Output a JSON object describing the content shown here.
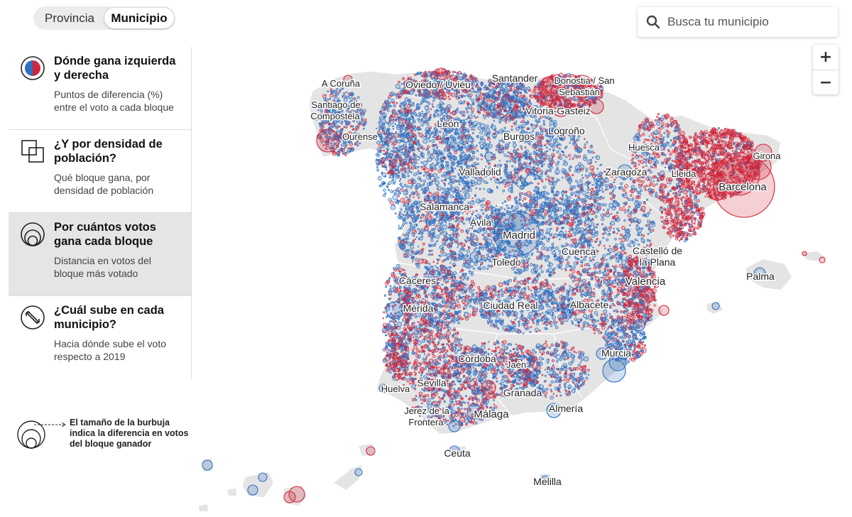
{
  "toggle": {
    "options": [
      "Provincia",
      "Municipio"
    ],
    "selected": "Municipio"
  },
  "search": {
    "placeholder": "Busca tu municipio",
    "value": ""
  },
  "zoom": {
    "in_label": "+",
    "out_label": "−"
  },
  "menu": [
    {
      "title": "Dónde gana izquierda y derecha",
      "desc": "Puntos de diferencia (%) entre el voto a cada bloque",
      "icon": "half-circle-icon"
    },
    {
      "title": "¿Y por densidad de población?",
      "desc": "Qué bloque gana, por densidad de población",
      "icon": "squares-icon"
    },
    {
      "title": "Por cuántos votos gana cada bloque",
      "desc": "Distancia en votos del bloque más votado",
      "icon": "nested-circles-icon"
    },
    {
      "title": "¿Cuál sube en cada municipio?",
      "desc": "Hacia dónde sube el voto respecto a 2019",
      "icon": "diagonal-arrows-icon"
    }
  ],
  "selected_menu": 2,
  "legend": {
    "text": "El tamaño de la burbuja indica la diferencia en votos del bloque ganador"
  },
  "colors": {
    "left": "#d0253a",
    "right": "#2e6fc0",
    "land": "#e4e4e4",
    "border": "#ffffff"
  },
  "cities": [
    {
      "name": "A Coruña"
    },
    {
      "name": "Oviedo / Uviéu"
    },
    {
      "name": "Santander"
    },
    {
      "name": "Donostia / San"
    },
    {
      "name": "Sebastián"
    },
    {
      "name": "Santiago de"
    },
    {
      "name": "Compostela"
    },
    {
      "name": "Vitoria-Gasteiz"
    },
    {
      "name": "León"
    },
    {
      "name": "Logroño"
    },
    {
      "name": "Ourense"
    },
    {
      "name": "Burgos"
    },
    {
      "name": "Huesca"
    },
    {
      "name": "Girona"
    },
    {
      "name": "Valladolid"
    },
    {
      "name": "Zaragoza"
    },
    {
      "name": "Lleida"
    },
    {
      "name": "Barcelona"
    },
    {
      "name": "Salamanca"
    },
    {
      "name": "Ávila"
    },
    {
      "name": "Madrid"
    },
    {
      "name": "Cuenca"
    },
    {
      "name": "Castelló de"
    },
    {
      "name": "la Plana"
    },
    {
      "name": "Toledo"
    },
    {
      "name": "Palma"
    },
    {
      "name": "Cáceres"
    },
    {
      "name": "Valencia"
    },
    {
      "name": "Mérida"
    },
    {
      "name": "Ciudad Real"
    },
    {
      "name": "Albacete"
    },
    {
      "name": "Murcia"
    },
    {
      "name": "Córdoba"
    },
    {
      "name": "Jaén"
    },
    {
      "name": "Huelva"
    },
    {
      "name": "Sevilla"
    },
    {
      "name": "Granada"
    },
    {
      "name": "Almería"
    },
    {
      "name": "Jerez de la"
    },
    {
      "name": "Frontera"
    },
    {
      "name": "Málaga"
    },
    {
      "name": "Ceuta"
    },
    {
      "name": "Melilla"
    }
  ]
}
